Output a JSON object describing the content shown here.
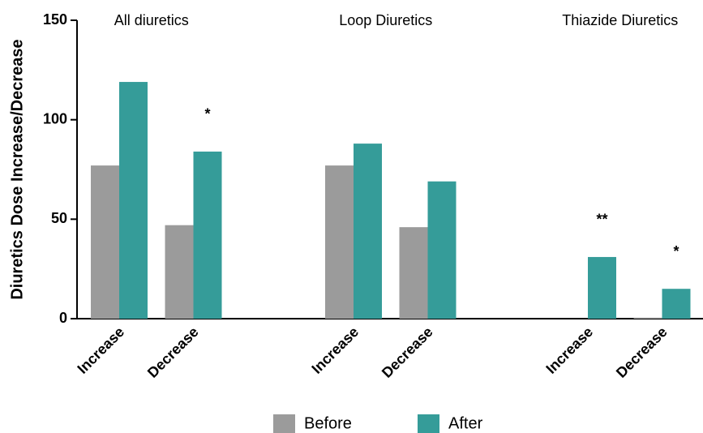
{
  "chart_data": {
    "type": "bar",
    "y_label": "Diuretics Dose Increase/Decrease",
    "groups": [
      "All diuretics",
      "Loop Diuretics",
      "Thiazide Diuretics"
    ],
    "categories": [
      "Increase",
      "Decrease",
      "Increase",
      "Decrease",
      "Increase",
      "Decrease"
    ],
    "series": [
      {
        "name": "Before",
        "color": "#9b9b9b",
        "values": [
          77,
          47,
          77,
          46,
          0,
          0.5
        ]
      },
      {
        "name": "After",
        "color": "#359c99",
        "values": [
          119,
          84,
          88,
          69,
          31,
          15
        ],
        "annotations": [
          null,
          "*",
          null,
          null,
          "**",
          "*"
        ]
      }
    ],
    "ylim": [
      0,
      150
    ],
    "yticks": [
      0,
      50,
      100,
      150
    ]
  }
}
